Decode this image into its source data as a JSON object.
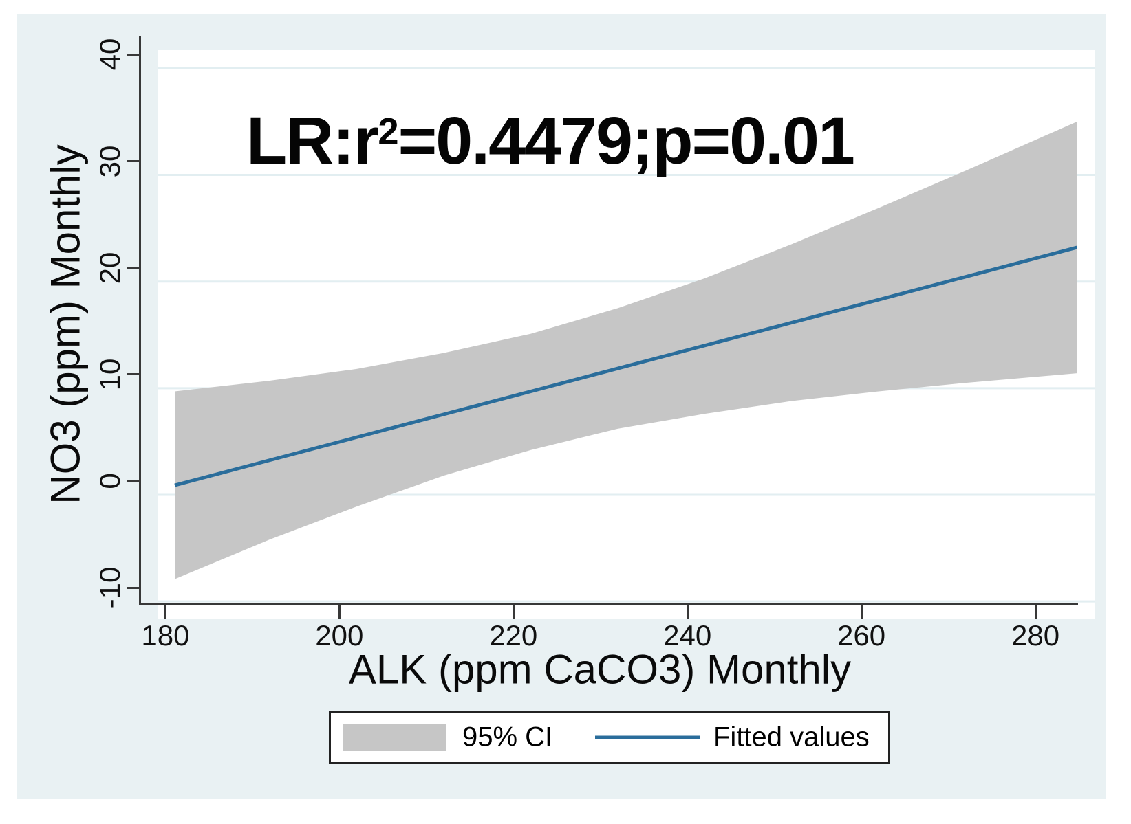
{
  "figure": {
    "title_prefix": "LR:r",
    "title_sup": "2",
    "title_suffix": "=0.4479;p=0.01"
  },
  "legend": {
    "ci_label": "95% CI",
    "fit_label": "Fitted values"
  },
  "colors": {
    "canvas_bg": "#e9f1f3",
    "plot_bg": "#ffffff",
    "grid": "#e2eef1",
    "axis": "#383838",
    "ci_band": "#c6c6c6",
    "fit_line": "#2a6d9b"
  },
  "chart_data": {
    "type": "area",
    "title": "LR:r2=0.4479;p=0.01",
    "xlabel": "ALK (ppm CaCO3) Monthly",
    "ylabel": "NO3 (ppm) Monthly",
    "xlim": [
      177.2,
      284.9
    ],
    "ylim": [
      -11.6,
      41.7
    ],
    "x_ticks": [
      180,
      200,
      220,
      240,
      260,
      280
    ],
    "y_ticks": [
      -10,
      0,
      10,
      20,
      30,
      40
    ],
    "grid": "horizontal",
    "legend_position": "bottom",
    "series": [
      {
        "name": "95% CI",
        "kind": "band",
        "x": [
          179.1,
          190,
          200,
          210,
          220,
          230,
          240,
          250,
          260,
          270,
          282.8
        ],
        "upper": [
          9.7,
          10.7,
          11.8,
          13.3,
          15.1,
          17.5,
          20.3,
          23.5,
          26.9,
          30.4,
          35.0
        ],
        "lower": [
          -7.9,
          -4.2,
          -1.1,
          1.8,
          4.2,
          6.2,
          7.6,
          8.8,
          9.7,
          10.5,
          11.4
        ]
      },
      {
        "name": "Fitted values",
        "kind": "line",
        "x": [
          179.1,
          282.8
        ],
        "y": [
          0.9,
          23.2
        ]
      }
    ]
  }
}
